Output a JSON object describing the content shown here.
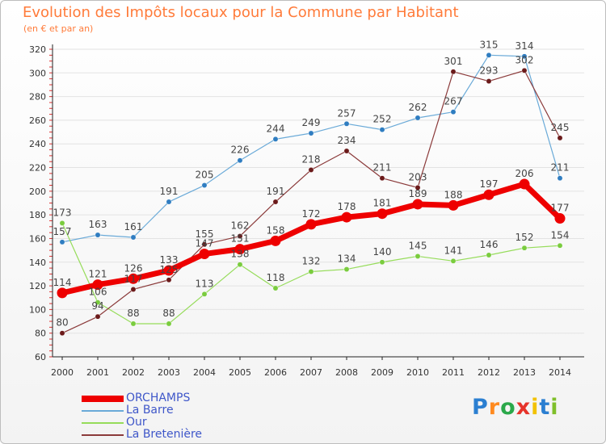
{
  "header": {
    "title": "Evolution des Impôts locaux pour la Commune par Habitant",
    "subtitle": "(en € et par an)"
  },
  "logo": {
    "text": "Proxiti"
  },
  "colors": {
    "title": "#ff7b3a",
    "legend_text": "#3f57c9",
    "axis": "#222222",
    "grid": "#e3e3e3",
    "tick_marks": "#e03030"
  },
  "chart_data": {
    "type": "line",
    "title": "Evolution des Impôts locaux pour la Commune par Habitant",
    "subtitle": "(en € et par an)",
    "xlabel": "",
    "ylabel": "",
    "x": [
      "2000",
      "2001",
      "2002",
      "2003",
      "2004",
      "2005",
      "2006",
      "2007",
      "2008",
      "2009",
      "2010",
      "2011",
      "2012",
      "2013",
      "2014"
    ],
    "ylim": [
      60,
      320
    ],
    "yticks": [
      60,
      80,
      100,
      120,
      140,
      160,
      180,
      200,
      220,
      240,
      260,
      280,
      300,
      320
    ],
    "grid": true,
    "legend_position": "bottom-left",
    "series": [
      {
        "name": "ORCHAMPS",
        "color": "#ee0000",
        "marker": "#ee0000",
        "width": 7,
        "values": [
          114,
          121,
          126,
          133,
          147,
          151,
          158,
          172,
          178,
          181,
          189,
          188,
          197,
          206,
          177
        ]
      },
      {
        "name": "La Barre",
        "color": "#6aaad8",
        "marker": "#2f7dc1",
        "width": 1.2,
        "values": [
          157,
          163,
          161,
          191,
          205,
          226,
          244,
          249,
          257,
          252,
          262,
          267,
          315,
          314,
          211
        ]
      },
      {
        "name": "Our",
        "color": "#96dc5a",
        "marker": "#7acc3e",
        "width": 1.2,
        "values": [
          173,
          106,
          88,
          88,
          113,
          138,
          118,
          132,
          134,
          140,
          145,
          141,
          146,
          152,
          154
        ]
      },
      {
        "name": "La Bretenière",
        "color": "#8b3a3a",
        "marker": "#6b1a1a",
        "width": 1.2,
        "values": [
          80,
          94,
          117,
          125,
          155,
          162,
          191,
          218,
          234,
          211,
          203,
          301,
          293,
          302,
          245
        ]
      }
    ]
  }
}
